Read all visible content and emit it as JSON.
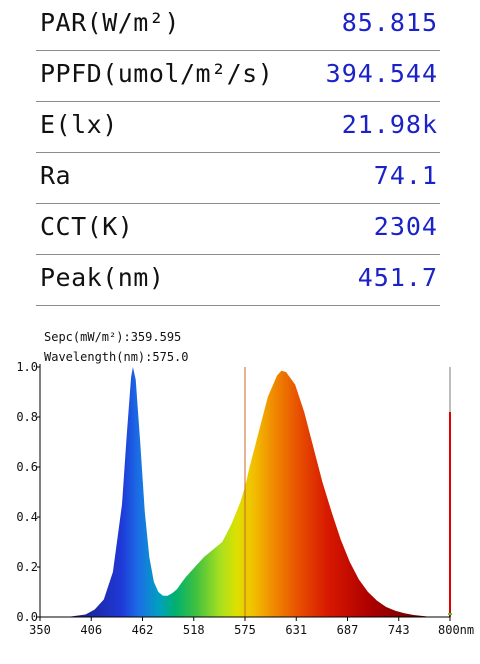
{
  "metrics": [
    {
      "label": "PAR(W/m²)",
      "value": "85.815"
    },
    {
      "label": "PPFD(umol/m²/s)",
      "value": "394.544"
    },
    {
      "label": "E(lx)",
      "value": "21.98k"
    },
    {
      "label": "Ra",
      "value": "74.1"
    },
    {
      "label": "CCT(K)",
      "value": "2304"
    },
    {
      "label": "Peak(nm)",
      "value": "451.7"
    }
  ],
  "chart_data": {
    "type": "area",
    "annotations": [
      "Sepc(mW/m²):359.595",
      "Wavelength(nm):575.0"
    ],
    "x_tick_labels": [
      "350",
      "406",
      "462",
      "518",
      "575",
      "631",
      "687",
      "743",
      "800nm"
    ],
    "y_tick_labels": [
      "0.0",
      "0.2",
      "0.4",
      "0.6",
      "0.8",
      "1.0"
    ],
    "xlim": [
      350,
      800
    ],
    "ylim": [
      0,
      1.0
    ],
    "cursor_wavelength": 575.0,
    "spectrum_fill": "wavelength-rainbow",
    "cursor_color": "#c86428",
    "end_marker_color": "#e00000",
    "x": [
      380,
      390,
      400,
      410,
      420,
      430,
      440,
      445,
      450,
      452,
      455,
      460,
      465,
      470,
      475,
      480,
      485,
      490,
      495,
      500,
      505,
      510,
      520,
      530,
      540,
      550,
      560,
      570,
      575,
      580,
      590,
      600,
      610,
      615,
      620,
      630,
      640,
      650,
      660,
      670,
      680,
      690,
      700,
      710,
      720,
      730,
      740,
      750,
      760,
      770,
      780
    ],
    "y": [
      0.0,
      0.005,
      0.01,
      0.03,
      0.07,
      0.18,
      0.45,
      0.72,
      0.96,
      1.0,
      0.95,
      0.7,
      0.42,
      0.24,
      0.14,
      0.1,
      0.085,
      0.085,
      0.095,
      0.11,
      0.135,
      0.16,
      0.2,
      0.24,
      0.27,
      0.3,
      0.37,
      0.46,
      0.52,
      0.6,
      0.74,
      0.88,
      0.965,
      0.985,
      0.98,
      0.93,
      0.82,
      0.68,
      0.54,
      0.42,
      0.31,
      0.22,
      0.15,
      0.1,
      0.065,
      0.04,
      0.025,
      0.015,
      0.008,
      0.004,
      0.0
    ]
  }
}
